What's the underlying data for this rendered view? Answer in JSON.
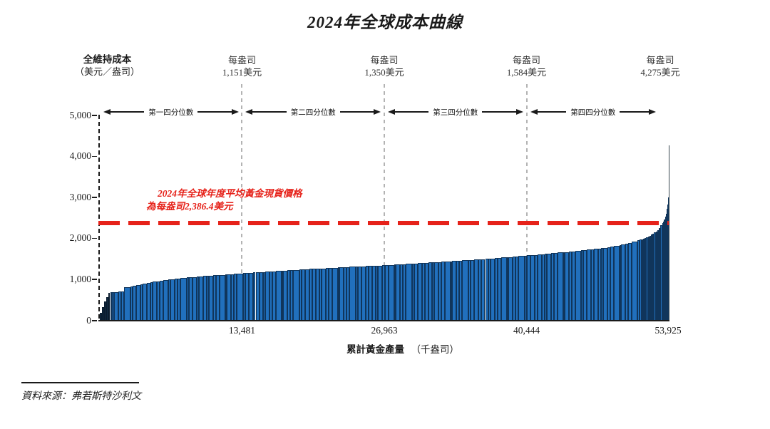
{
  "header": {
    "title": "2024年全球成本曲線"
  },
  "y_axis": {
    "title_line1": "全維持成本",
    "title_line2": "（美元／盎司）",
    "tick_labels": [
      "0",
      "1,000",
      "2,000",
      "3,000",
      "4,000",
      "5,000"
    ]
  },
  "x_axis": {
    "tick_labels": [
      "13,481",
      "26,963",
      "40,444",
      "53,925"
    ],
    "label_bold": "累計黃金產量",
    "label_unit": "（千盎司）"
  },
  "quartiles": [
    {
      "label": "第一四分位數",
      "per_oz": "每盎司",
      "value_label": "1,151美元"
    },
    {
      "label": "第二四分位數",
      "per_oz": "每盎司",
      "value_label": "1,350美元"
    },
    {
      "label": "第三四分位數",
      "per_oz": "每盎司",
      "value_label": "1,584美元"
    },
    {
      "label": "第四四分位數",
      "per_oz": "每盎司",
      "value_label": "4,275美元"
    }
  ],
  "annotation": {
    "line1": "2024年全球年度平均黃金現貨價格",
    "line2": "為每盎司2,386.4美元"
  },
  "source": {
    "text": "資料來源：弗若斯特沙利文"
  },
  "colors": {
    "bar_fill": "#2170BD",
    "bar_edge": "#10355B",
    "bar_dark_fill": "#132B44",
    "bar_dark_edge": "#0A1C2E",
    "needle": "#37474F",
    "spot_red": "#E6221A",
    "dash_gray": "#B3B3B3",
    "axis_black": "#1A1A1A"
  },
  "chart_data": {
    "type": "bar",
    "title": "2024年全球成本曲線",
    "xlabel": "累計黃金產量（千盎司）",
    "ylabel": "全維持成本（美元／盎司）",
    "xlim": [
      0,
      53925
    ],
    "ylim": [
      0,
      5000
    ],
    "x_ticks": [
      13481,
      26963,
      40444,
      53925
    ],
    "y_ticks": [
      0,
      1000,
      2000,
      3000,
      4000,
      5000
    ],
    "grid": false,
    "quartile_boundaries_koz": [
      13481,
      26963,
      40444,
      53925
    ],
    "quartile_boundary_aisc_usd_per_oz": [
      1151,
      1350,
      1584,
      4275
    ],
    "avg_spot_price_usd_per_oz": 2386.4,
    "max_aisc_usd_per_oz": 4275,
    "curve_points": [
      [
        0,
        110
      ],
      [
        200,
        260
      ],
      [
        420,
        430
      ],
      [
        650,
        560
      ],
      [
        850,
        660
      ],
      [
        950,
        700
      ],
      [
        2250,
        705
      ],
      [
        2400,
        800
      ],
      [
        3600,
        865
      ],
      [
        5200,
        950
      ],
      [
        7300,
        1025
      ],
      [
        9500,
        1078
      ],
      [
        11500,
        1116
      ],
      [
        13481,
        1151
      ],
      [
        16500,
        1205
      ],
      [
        19500,
        1253
      ],
      [
        23200,
        1303
      ],
      [
        26963,
        1350
      ],
      [
        30500,
        1403
      ],
      [
        34000,
        1458
      ],
      [
        37300,
        1518
      ],
      [
        40444,
        1584
      ],
      [
        43000,
        1643
      ],
      [
        45500,
        1703
      ],
      [
        47600,
        1766
      ],
      [
        49300,
        1838
      ],
      [
        50700,
        1925
      ],
      [
        51800,
        2020
      ],
      [
        52500,
        2120
      ],
      [
        53000,
        2230
      ],
      [
        53350,
        2386
      ],
      [
        53550,
        2480
      ],
      [
        53700,
        2620
      ],
      [
        53800,
        2780
      ],
      [
        53870,
        2950
      ],
      [
        53925,
        4275
      ]
    ]
  }
}
